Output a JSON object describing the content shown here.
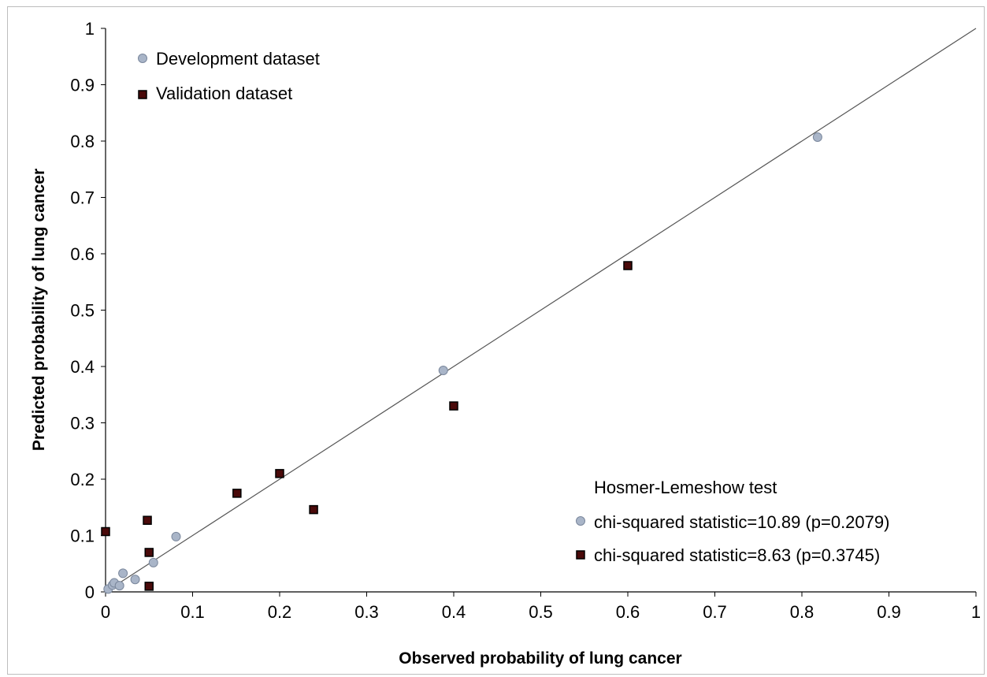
{
  "chart_data": {
    "type": "scatter",
    "title": "",
    "xlabel": "Observed probability of lung cancer",
    "ylabel": "Predicted probability of lung cancer",
    "xlim": [
      0,
      1
    ],
    "ylim": [
      0,
      1
    ],
    "x_ticks": [
      "0",
      "0.1",
      "0.2",
      "0.3",
      "0.4",
      "0.5",
      "0.6",
      "0.7",
      "0.8",
      "0.9",
      "1"
    ],
    "y_ticks": [
      "0",
      "0.1",
      "0.2",
      "0.3",
      "0.4",
      "0.5",
      "0.6",
      "0.7",
      "0.8",
      "0.9",
      "1"
    ],
    "grid": false,
    "reference_line": {
      "from": [
        0,
        0
      ],
      "to": [
        1,
        1
      ],
      "color": "#555555"
    },
    "legend_position": "top-left",
    "series": [
      {
        "name": "Development dataset",
        "marker": "circle",
        "fill": "#a9b5c8",
        "stroke": "#7a879c",
        "points": [
          [
            0.003,
            0.005
          ],
          [
            0.008,
            0.012
          ],
          [
            0.01,
            0.016
          ],
          [
            0.016,
            0.011
          ],
          [
            0.02,
            0.033
          ],
          [
            0.034,
            0.022
          ],
          [
            0.055,
            0.052
          ],
          [
            0.081,
            0.098
          ],
          [
            0.388,
            0.393
          ],
          [
            0.818,
            0.807
          ]
        ]
      },
      {
        "name": "Validation dataset",
        "marker": "square",
        "fill": "#4a0a0a",
        "stroke": "#000000",
        "points": [
          [
            0.0,
            0.107
          ],
          [
            0.048,
            0.127
          ],
          [
            0.05,
            0.07
          ],
          [
            0.05,
            0.01
          ],
          [
            0.151,
            0.175
          ],
          [
            0.2,
            0.21
          ],
          [
            0.239,
            0.146
          ],
          [
            0.4,
            0.33
          ],
          [
            0.6,
            0.579
          ]
        ]
      }
    ],
    "annotation": {
      "title": "Hosmer-Lemeshow test",
      "lines": [
        {
          "marker": "circle",
          "text": "chi-squared statistic=10.89 (p=0.2079)"
        },
        {
          "marker": "square",
          "text": "chi-squared statistic=8.63 (p=0.3745)"
        }
      ]
    }
  }
}
